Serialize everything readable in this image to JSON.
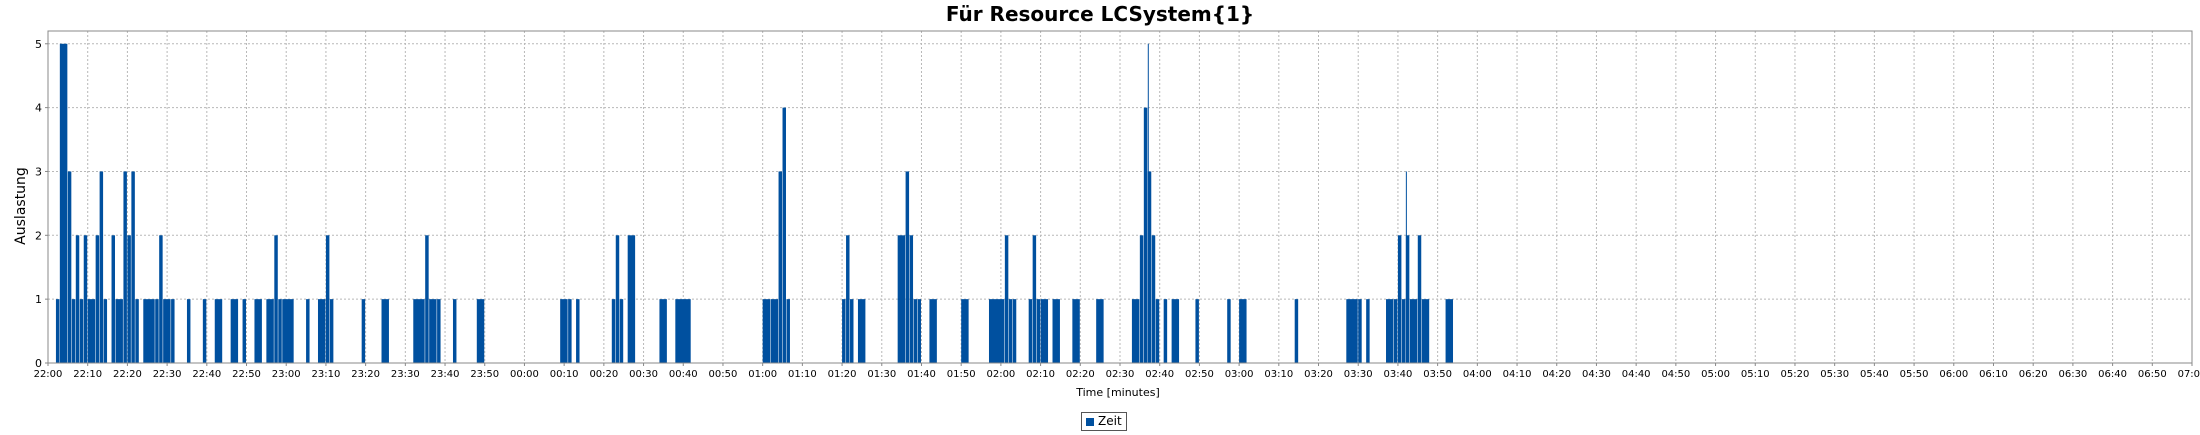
{
  "colors": {
    "bar": "#00509f",
    "grid": "#b8b8b8",
    "axis": "#888888",
    "background": "#ffffff"
  },
  "chart_data": {
    "type": "bar",
    "title": "Für Resource LCSystem{1}",
    "xlabel": "Time [minutes]",
    "ylabel": "Auslastung",
    "ylim": [
      0,
      5.2
    ],
    "yticks": [
      0,
      1,
      2,
      3,
      4,
      5
    ],
    "xlim": [
      "22:00",
      "07:00"
    ],
    "xticks": [
      "22:00",
      "22:10",
      "22:20",
      "22:30",
      "22:40",
      "22:50",
      "23:00",
      "23:10",
      "23:20",
      "23:30",
      "23:40",
      "23:50",
      "00:00",
      "00:10",
      "00:20",
      "00:30",
      "00:40",
      "00:50",
      "01:00",
      "01:10",
      "01:20",
      "01:30",
      "01:40",
      "01:50",
      "02:00",
      "02:10",
      "02:20",
      "02:30",
      "02:40",
      "02:50",
      "03:00",
      "03:10",
      "03:20",
      "03:30",
      "03:40",
      "03:50",
      "04:00",
      "04:10",
      "04:20",
      "04:30",
      "04:40",
      "04:50",
      "05:00",
      "05:10",
      "05:20",
      "05:30",
      "05:40",
      "05:50",
      "06:00",
      "06:10",
      "06:20",
      "06:30",
      "06:40",
      "06:50",
      "07:00"
    ],
    "grid": true,
    "legend_position": "bottom-center",
    "series": [
      {
        "name": "Zeit",
        "bars": [
          [
            "22:02",
            "22:03",
            1
          ],
          [
            "22:03",
            "22:05",
            5
          ],
          [
            "22:05",
            "22:06",
            3
          ],
          [
            "22:06",
            "22:07",
            1
          ],
          [
            "22:07",
            "22:08",
            2
          ],
          [
            "22:08",
            "22:09",
            1
          ],
          [
            "22:09",
            "22:10",
            2
          ],
          [
            "22:10",
            "22:12",
            1
          ],
          [
            "22:12",
            "22:13",
            2
          ],
          [
            "22:13",
            "22:14",
            3
          ],
          [
            "22:14",
            "22:15",
            1
          ],
          [
            "22:16",
            "22:17",
            2
          ],
          [
            "22:17",
            "22:19",
            1
          ],
          [
            "22:19",
            "22:20",
            3
          ],
          [
            "22:20",
            "22:21",
            2
          ],
          [
            "22:21",
            "22:22",
            3
          ],
          [
            "22:22",
            "22:23",
            1
          ],
          [
            "22:24",
            "22:27",
            1
          ],
          [
            "22:27",
            "22:28",
            1
          ],
          [
            "22:28",
            "22:29",
            2
          ],
          [
            "22:29",
            "22:31",
            1
          ],
          [
            "22:31",
            "22:32",
            1
          ],
          [
            "22:35",
            "22:36",
            1
          ],
          [
            "22:39",
            "22:40",
            1
          ],
          [
            "22:42",
            "22:44",
            1
          ],
          [
            "22:46",
            "22:48",
            1
          ],
          [
            "22:49",
            "22:50",
            1
          ],
          [
            "22:52",
            "22:54",
            1
          ],
          [
            "22:55",
            "22:57",
            1
          ],
          [
            "22:57",
            "22:58",
            2
          ],
          [
            "22:58",
            "22:59",
            1
          ],
          [
            "22:59",
            "23:02",
            1
          ],
          [
            "23:05",
            "23:06",
            1
          ],
          [
            "23:08",
            "23:10",
            1
          ],
          [
            "23:10",
            "23:11",
            2
          ],
          [
            "23:11",
            "23:12",
            1
          ],
          [
            "23:19",
            "23:20",
            1
          ],
          [
            "23:24",
            "23:26",
            1
          ],
          [
            "23:32",
            "23:35",
            1
          ],
          [
            "23:35",
            "23:36",
            2
          ],
          [
            "23:36",
            "23:38",
            1
          ],
          [
            "23:38",
            "23:39",
            1
          ],
          [
            "23:42",
            "23:43",
            1
          ],
          [
            "23:48",
            "23:50",
            1
          ],
          [
            "00:09",
            "00:11",
            1
          ],
          [
            "00:11",
            "00:12",
            1
          ],
          [
            "00:13",
            "00:14",
            1
          ],
          [
            "00:22",
            "00:23",
            1
          ],
          [
            "00:23",
            "00:24",
            2
          ],
          [
            "00:24",
            "00:25",
            1
          ],
          [
            "00:26",
            "00:28",
            2
          ],
          [
            "00:34",
            "00:36",
            1
          ],
          [
            "00:38",
            "00:42",
            1
          ],
          [
            "01:00",
            "01:02",
            1
          ],
          [
            "01:02",
            "01:04",
            1
          ],
          [
            "01:04",
            "01:05",
            3
          ],
          [
            "01:05",
            "01:06",
            4
          ],
          [
            "01:06",
            "01:07",
            1
          ],
          [
            "01:20",
            "01:21",
            1
          ],
          [
            "01:21",
            "01:22",
            2
          ],
          [
            "01:22",
            "01:23",
            1
          ],
          [
            "01:24",
            "01:26",
            1
          ],
          [
            "01:34",
            "01:36",
            2
          ],
          [
            "01:36",
            "01:37",
            3
          ],
          [
            "01:37",
            "01:38",
            2
          ],
          [
            "01:38",
            "01:39",
            1
          ],
          [
            "01:39",
            "01:40",
            1
          ],
          [
            "01:42",
            "01:44",
            1
          ],
          [
            "01:50",
            "01:52",
            1
          ],
          [
            "01:57",
            "02:01",
            1
          ],
          [
            "02:01",
            "02:02",
            2
          ],
          [
            "02:02",
            "02:03",
            1
          ],
          [
            "02:03",
            "02:04",
            1
          ],
          [
            "02:07",
            "02:08",
            1
          ],
          [
            "02:08",
            "02:09",
            2
          ],
          [
            "02:09",
            "02:10",
            1
          ],
          [
            "02:10",
            "02:12",
            1
          ],
          [
            "02:13",
            "02:15",
            1
          ],
          [
            "02:18",
            "02:20",
            1
          ],
          [
            "02:24",
            "02:26",
            1
          ],
          [
            "02:33",
            "02:35",
            1
          ],
          [
            "02:35",
            "02:36",
            2
          ],
          [
            "02:36",
            "02:37",
            4
          ],
          [
            "02:37",
            "02:38",
            3
          ],
          [
            "02:38",
            "02:39",
            2
          ],
          [
            "02:39",
            "02:40",
            1
          ],
          [
            "02:41",
            "02:42",
            1
          ],
          [
            "02:43",
            "02:45",
            1
          ],
          [
            "02:49",
            "02:50",
            1
          ],
          [
            "02:57",
            "02:58",
            1
          ],
          [
            "03:00",
            "03:02",
            1
          ],
          [
            "03:14",
            "03:15",
            1
          ],
          [
            "03:27",
            "03:30",
            1
          ],
          [
            "03:30",
            "03:31",
            1
          ],
          [
            "03:32",
            "03:33",
            1
          ],
          [
            "03:37",
            "03:39",
            1
          ],
          [
            "03:39",
            "03:40",
            1
          ],
          [
            "03:40",
            "03:41",
            2
          ],
          [
            "03:41",
            "03:42",
            1
          ],
          [
            "03:42",
            "03:43",
            2
          ],
          [
            "03:43",
            "03:45",
            1
          ],
          [
            "03:45",
            "03:46",
            2
          ],
          [
            "03:46",
            "03:48",
            1
          ],
          [
            "03:52",
            "03:54",
            1
          ]
        ],
        "spikes": [
          [
            "22:03",
            5
          ],
          [
            "02:37",
            5
          ],
          [
            "03:42",
            3
          ]
        ]
      }
    ]
  }
}
